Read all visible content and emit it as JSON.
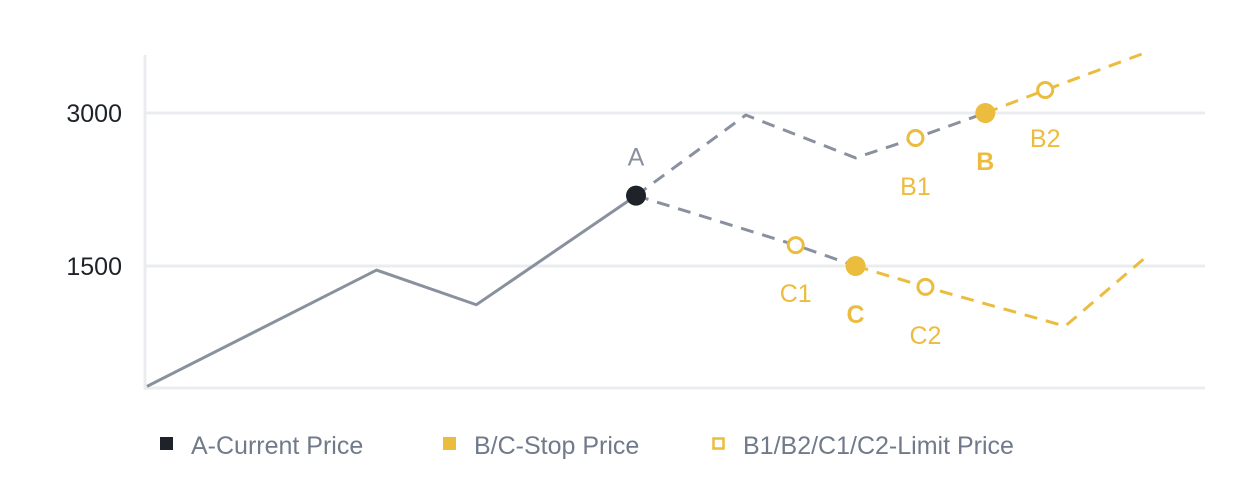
{
  "chart_data": {
    "type": "line",
    "title": "",
    "xlabel": "",
    "ylabel": "",
    "ylim": [
      300,
      3600
    ],
    "xlim": [
      0,
      100
    ],
    "grid": true,
    "yticks": [
      {
        "value": 3000,
        "label": "3000"
      },
      {
        "value": 1500,
        "label": "1500"
      }
    ],
    "colors": {
      "price": "#8a919e",
      "current": "#1e2329",
      "stop": "#ebbc3e",
      "grid": "#eaecef",
      "tick": "#1e2329",
      "legend_text": "#707a8a"
    },
    "segments": [
      {
        "style": "solid",
        "color": "price",
        "points": [
          [
            0,
            320
          ],
          [
            23,
            1460
          ],
          [
            33,
            1120
          ],
          [
            49,
            2190
          ]
        ]
      },
      {
        "style": "dashed",
        "color": "price",
        "points": [
          [
            49,
            2190
          ],
          [
            60,
            2980
          ],
          [
            71,
            2560
          ],
          [
            77,
            2755
          ],
          [
            84,
            3000
          ]
        ]
      },
      {
        "style": "dashed",
        "color": "stop",
        "points": [
          [
            84,
            3000
          ],
          [
            90,
            3225
          ],
          [
            100,
            3590
          ]
        ]
      },
      {
        "style": "dashed",
        "color": "price",
        "points": [
          [
            49,
            2190
          ],
          [
            65,
            1705
          ],
          [
            71,
            1500
          ]
        ]
      },
      {
        "style": "dashed",
        "color": "stop",
        "points": [
          [
            71,
            1500
          ],
          [
            78,
            1295
          ],
          [
            92,
            910
          ],
          [
            100,
            1580
          ]
        ]
      }
    ],
    "markers": [
      {
        "label": "A",
        "x": 49,
        "y": 2190,
        "kind": "current",
        "label_pos": "above"
      },
      {
        "label": "B1",
        "x": 77,
        "y": 2755,
        "kind": "limit",
        "label_pos": "below"
      },
      {
        "label": "B",
        "x": 84,
        "y": 3000,
        "kind": "stop",
        "label_pos": "below"
      },
      {
        "label": "B2",
        "x": 90,
        "y": 3225,
        "kind": "limit",
        "label_pos": "below"
      },
      {
        "label": "C1",
        "x": 65,
        "y": 1705,
        "kind": "limit",
        "label_pos": "below"
      },
      {
        "label": "C",
        "x": 71,
        "y": 1500,
        "kind": "stop",
        "label_pos": "below"
      },
      {
        "label": "C2",
        "x": 78,
        "y": 1295,
        "kind": "limit",
        "label_pos": "below"
      }
    ],
    "legend": {
      "placement": "bottom",
      "entries": [
        {
          "label": "A-Current Price",
          "symbol": "filled-square",
          "color": "current"
        },
        {
          "label": "B/C-Stop Price",
          "symbol": "filled-square",
          "color": "stop"
        },
        {
          "label": "B1/B2/C1/C2-Limit Price",
          "symbol": "hollow-square",
          "color": "stop"
        }
      ]
    }
  }
}
